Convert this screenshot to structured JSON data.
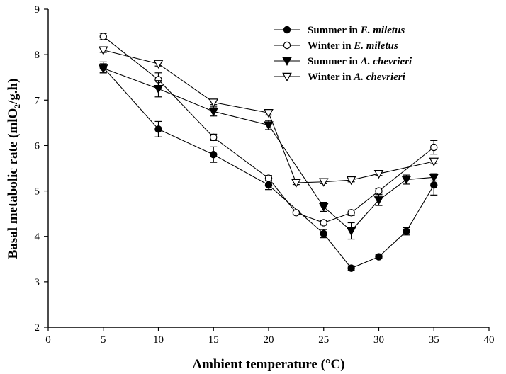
{
  "chart_data": {
    "type": "line",
    "title": "",
    "xlabel": "Ambient temperature (°C)",
    "ylabel": "Basal metabolic rate (mlO₂/g.h)",
    "xlim": [
      0,
      40
    ],
    "ylim": [
      2,
      9
    ],
    "xticks": [
      0,
      5,
      10,
      15,
      20,
      25,
      30,
      35,
      40
    ],
    "yticks": [
      2,
      3,
      4,
      5,
      6,
      7,
      8,
      9
    ],
    "grid": false,
    "legend_position": "top-right",
    "series": [
      {
        "name": "Summer in E. miletus",
        "name_prefix": "Summer in ",
        "name_species": "E. miletus",
        "marker": "circle-filled",
        "x": [
          5,
          10,
          15,
          20,
          25,
          27.5,
          30,
          32.5,
          35
        ],
        "y": [
          7.72,
          6.36,
          5.8,
          5.13,
          4.06,
          3.3,
          3.55,
          4.11,
          5.13
        ],
        "err": [
          0.12,
          0.17,
          0.17,
          0.1,
          0.09,
          0.05,
          0.04,
          0.08,
          0.22
        ]
      },
      {
        "name": "Winter in E. miletus",
        "name_prefix": "Winter in ",
        "name_species": "E. miletus",
        "marker": "circle-open",
        "x": [
          5,
          10,
          15,
          20,
          22.5,
          25,
          27.5,
          30,
          35
        ],
        "y": [
          8.4,
          7.45,
          6.18,
          5.28,
          4.52,
          4.3,
          4.52,
          5.0,
          5.96
        ],
        "err": [
          0.07,
          0.15,
          0.07,
          0.06,
          0.03,
          0.05,
          0.06,
          0.05,
          0.15
        ]
      },
      {
        "name": "Summer in A. chevrieri",
        "name_prefix": "Summer in ",
        "name_species": "A. chevrieri",
        "marker": "triangle-down-filled",
        "x": [
          5,
          10,
          15,
          20,
          25,
          27.5,
          30,
          32.5,
          35
        ],
        "y": [
          7.7,
          7.25,
          6.75,
          6.45,
          4.65,
          4.12,
          4.8,
          5.25,
          5.3
        ],
        "err": [
          0.1,
          0.18,
          0.1,
          0.1,
          0.1,
          0.18,
          0.12,
          0.1,
          0.08
        ]
      },
      {
        "name": "Winter in A. chevrieri",
        "name_prefix": "Winter in ",
        "name_species": "A. chevrieri",
        "marker": "triangle-down-open",
        "x": [
          5,
          10,
          15,
          20,
          22.5,
          25,
          27.5,
          30,
          35
        ],
        "y": [
          8.1,
          7.8,
          6.95,
          6.72,
          5.18,
          5.2,
          5.24,
          5.38,
          5.65
        ],
        "err": [
          0.05,
          0.05,
          0.05,
          0.05,
          0.04,
          0.04,
          0.04,
          0.04,
          0.05
        ]
      }
    ]
  }
}
